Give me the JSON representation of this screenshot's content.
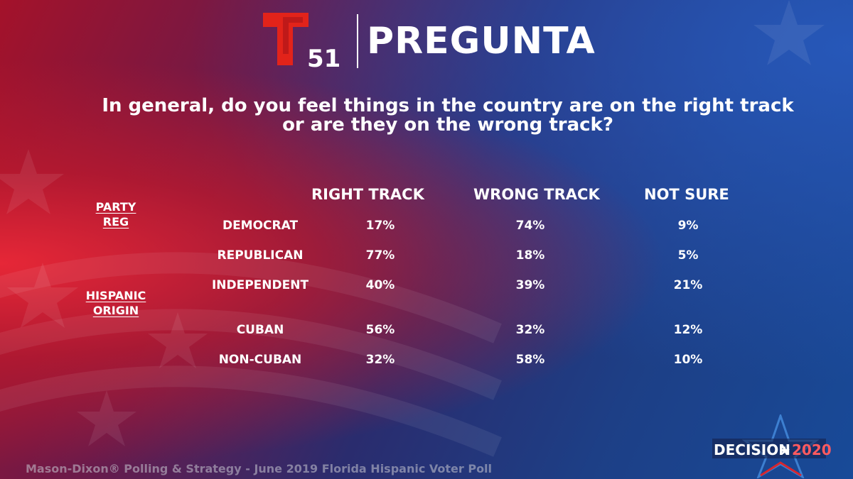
{
  "brand": {
    "channel_number": "51",
    "title": "PREGUNTA"
  },
  "question": {
    "line1": "In general, do you feel things in the country are on the right track",
    "line2": "or are they on the wrong track?"
  },
  "group_labels": {
    "party_line1": "PARTY",
    "party_line2": "REG",
    "origin_line1": "HISPANIC",
    "origin_line2": "ORIGIN"
  },
  "footer": {
    "source": "Mason-Dixon® Polling & Strategy - June 2019 Florida Hispanic Voter Poll"
  },
  "badge": {
    "word": "DECISION",
    "year": "2020"
  },
  "colors": {
    "telemundo_red": "#e2231a",
    "badge_red": "#d7262f",
    "badge_blue": "#3d7fd0"
  },
  "chart_data": {
    "type": "table",
    "columns": [
      "RIGHT TRACK",
      "WRONG TRACK",
      "NOT SURE"
    ],
    "rows": [
      {
        "label": "DEMOCRAT",
        "values": [
          "17%",
          "74%",
          "9%"
        ]
      },
      {
        "label": "REPUBLICAN",
        "values": [
          "77%",
          "18%",
          "5%"
        ]
      },
      {
        "label": "INDEPENDENT",
        "values": [
          "40%",
          "39%",
          "21%"
        ]
      },
      {
        "label": "CUBAN",
        "values": [
          "56%",
          "32%",
          "12%"
        ]
      },
      {
        "label": "NON-CUBAN",
        "values": [
          "32%",
          "58%",
          "10%"
        ]
      }
    ]
  }
}
